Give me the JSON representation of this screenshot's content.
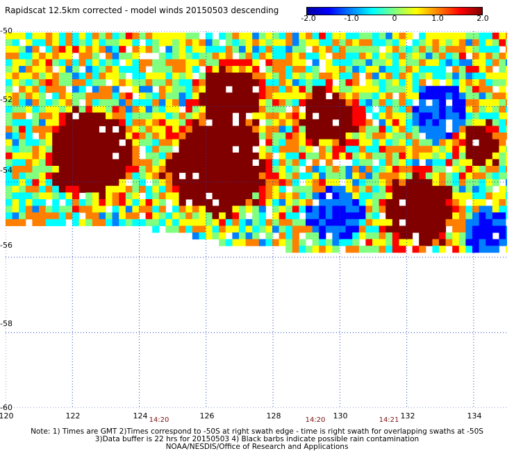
{
  "title": "Rapidscat 12.5km corrected - model winds 20150503 descending",
  "colorbar": {
    "ticks": [
      "-2.0",
      "-1.0",
      "0",
      "1.0",
      "2.0"
    ],
    "values": [
      -2.0,
      -1.0,
      0,
      1.0,
      2.0
    ],
    "range": [
      -2.0,
      2.0
    ],
    "colors": [
      "#0000a0",
      "#0000ff",
      "#0080ff",
      "#00ffff",
      "#80ff80",
      "#ffff00",
      "#ff8000",
      "#ff0000",
      "#800000"
    ]
  },
  "map": {
    "lon_range": [
      120,
      135
    ],
    "lat_range": [
      -50,
      -60
    ],
    "lon_ticks": [
      "120",
      "122",
      "124",
      "126",
      "128",
      "130",
      "132",
      "134"
    ],
    "lon_tick_values": [
      120,
      122,
      124,
      126,
      128,
      130,
      132,
      134
    ],
    "lat_ticks": [
      "-50",
      "-52",
      "-54",
      "-56",
      "-58",
      "-60"
    ],
    "lat_tick_values": [
      -50,
      -52,
      -54,
      -56,
      -58,
      -60
    ],
    "grid": "dotted",
    "missing_color": "#ffffff",
    "saturated_color": "#800000",
    "times": [
      {
        "label": "14:20",
        "lon": 125
      },
      {
        "label": "14:20",
        "lon": 129.2
      },
      {
        "label": "14:21",
        "lon": 131.4
      }
    ]
  },
  "notes": {
    "line1": "Note: 1) Times are GMT 2)Times correspond to -50S at right swath edge - time is right swath for overlapping swaths at -50S",
    "line2": "3)Data buffer is 22 hrs for 20150503 4) Black barbs indicate possible rain contamination",
    "line3": "NOAA/NESDIS/Office of Research and Applications"
  }
}
